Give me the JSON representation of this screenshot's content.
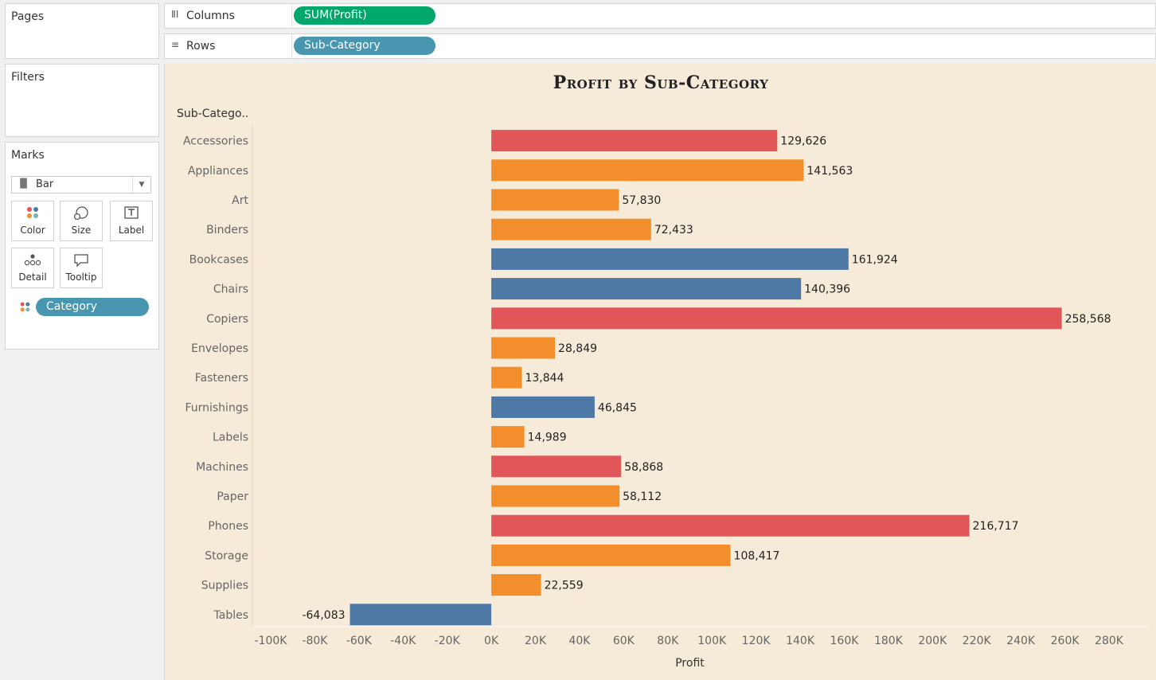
{
  "panels": {
    "pages": {
      "title": "Pages"
    },
    "filters": {
      "title": "Filters"
    },
    "marks": {
      "title": "Marks",
      "mark_type": "Bar",
      "buttons": [
        {
          "label": "Color",
          "icon": "color-icon"
        },
        {
          "label": "Size",
          "icon": "size-icon"
        },
        {
          "label": "Label",
          "icon": "label-icon"
        },
        {
          "label": "Detail",
          "icon": "detail-icon"
        },
        {
          "label": "Tooltip",
          "icon": "tooltip-icon"
        }
      ],
      "color_pill": "Category"
    }
  },
  "shelves": {
    "columns": {
      "label": "Columns",
      "pill": "SUM(Profit)",
      "pill_color": "#00a86b"
    },
    "rows": {
      "label": "Rows",
      "pill": "Sub-Category",
      "pill_color": "#4896b0"
    }
  },
  "colors": {
    "furniture": "#4e79a7",
    "office_supplies": "#f28e2b",
    "technology": "#e15759",
    "background": "#f6ead8"
  },
  "chart_data": {
    "type": "bar",
    "orientation": "horizontal",
    "title": "Profit by Sub-Category",
    "row_header": "Sub-Catego..",
    "xlabel": "Profit",
    "xlim": [
      -100000,
      280000
    ],
    "x_ticks": [
      "-100K",
      "-80K",
      "-60K",
      "-40K",
      "-20K",
      "0K",
      "20K",
      "40K",
      "60K",
      "80K",
      "100K",
      "120K",
      "140K",
      "160K",
      "180K",
      "200K",
      "220K",
      "240K",
      "260K",
      "280K"
    ],
    "categories": [
      "Accessories",
      "Appliances",
      "Art",
      "Binders",
      "Bookcases",
      "Chairs",
      "Copiers",
      "Envelopes",
      "Fasteners",
      "Furnishings",
      "Labels",
      "Machines",
      "Paper",
      "Phones",
      "Storage",
      "Supplies",
      "Tables"
    ],
    "values": [
      129626,
      141563,
      57830,
      72433,
      161924,
      140396,
      258568,
      28849,
      13844,
      46845,
      14989,
      58868,
      58112,
      216717,
      108417,
      22559,
      -64083
    ],
    "value_labels": [
      "129,626",
      "141,563",
      "57,830",
      "72,433",
      "161,924",
      "140,396",
      "258,568",
      "28,849",
      "13,844",
      "46,845",
      "14,989",
      "58,868",
      "58,112",
      "216,717",
      "108,417",
      "22,559",
      "-64,083"
    ],
    "bar_colors": [
      "#e15759",
      "#f28e2b",
      "#f28e2b",
      "#f28e2b",
      "#4e79a7",
      "#4e79a7",
      "#e15759",
      "#f28e2b",
      "#f28e2b",
      "#4e79a7",
      "#f28e2b",
      "#e15759",
      "#f28e2b",
      "#e15759",
      "#f28e2b",
      "#f28e2b",
      "#4e79a7"
    ],
    "grid": false,
    "legend": "none"
  }
}
